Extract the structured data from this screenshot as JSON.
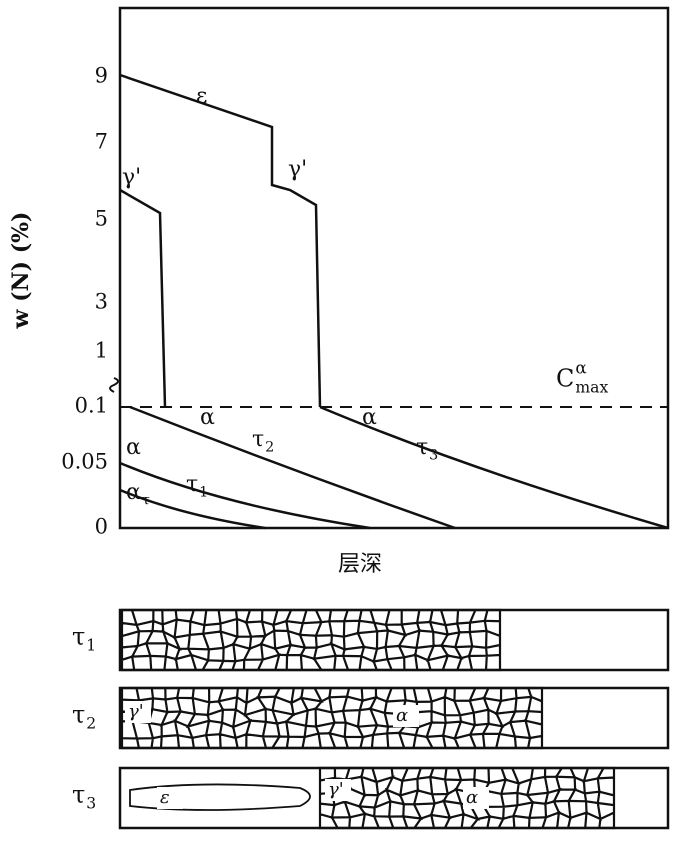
{
  "axis": {
    "y_label": "w (N) (%)",
    "y_ticks": [
      "9",
      "7",
      "5",
      "3",
      "1",
      "0.1",
      "0.05",
      "0"
    ],
    "x_label": "层深"
  },
  "curve_labels": [
    {
      "base": "ε"
    },
    {
      "base": "γ'"
    },
    {
      "base": "γ'"
    },
    {
      "base": "α"
    },
    {
      "base": "α"
    },
    {
      "base": "α"
    },
    {
      "base": "α",
      "sub": "τ"
    },
    {
      "base": "τ",
      "sub": "1"
    },
    {
      "base": "τ",
      "sub": "2"
    },
    {
      "base": "τ",
      "sub": "3"
    }
  ],
  "cmax": {
    "base": "C",
    "sub": "max",
    "sup": "α"
  },
  "panels": [
    {
      "label": {
        "base": "τ",
        "sub": "1"
      },
      "phases": []
    },
    {
      "label": {
        "base": "τ",
        "sub": "2"
      },
      "phases": [
        "γ'",
        "α"
      ]
    },
    {
      "label": {
        "base": "τ",
        "sub": "3"
      },
      "phases": [
        "ε",
        "γ'",
        "α"
      ]
    }
  ]
}
